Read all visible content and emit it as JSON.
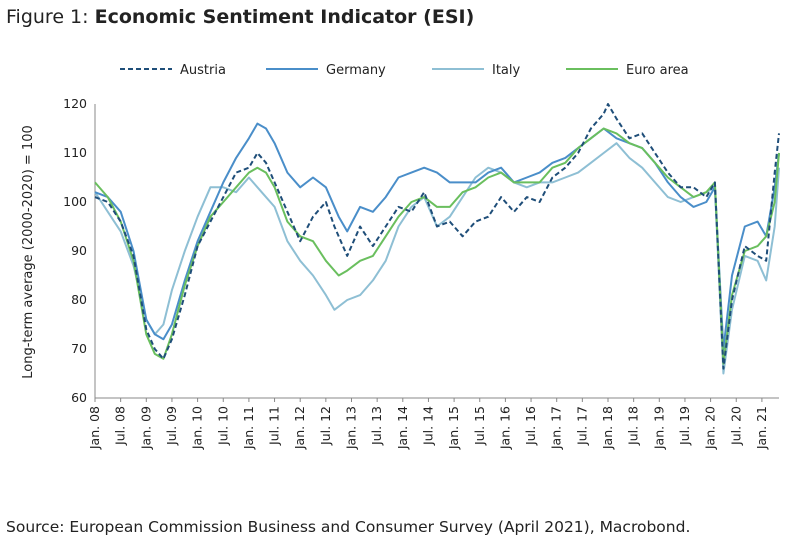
{
  "figure": {
    "prefix": "Figure 1: ",
    "title": "Economic Sentiment Indicator (ESI)",
    "source": "Source: European Commission Business and Consumer Survey (April 2021), Macrobond."
  },
  "chart_data": {
    "type": "line",
    "title": "Economic Sentiment Indicator (ESI)",
    "ylabel": "Long-term average (2000-2020) = 100",
    "xlabel": "",
    "ylim": [
      60,
      120
    ],
    "yticks": [
      60,
      70,
      80,
      90,
      100,
      110,
      120
    ],
    "xrange": [
      "2008-01",
      "2021-05"
    ],
    "xtick_labels": [
      {
        "date": "2008-01",
        "label": "Jan. 08"
      },
      {
        "date": "2008-07",
        "label": "Jul. 08"
      },
      {
        "date": "2009-01",
        "label": "Jan. 09"
      },
      {
        "date": "2009-07",
        "label": "Jul. 09"
      },
      {
        "date": "2010-01",
        "label": "Jan. 10"
      },
      {
        "date": "2010-07",
        "label": "Jul. 10"
      },
      {
        "date": "2011-01",
        "label": "Jan. 11"
      },
      {
        "date": "2011-07",
        "label": "Jul. 11"
      },
      {
        "date": "2012-01",
        "label": "Jan. 12"
      },
      {
        "date": "2012-07",
        "label": "Jul. 12"
      },
      {
        "date": "2013-01",
        "label": "Jan. 13"
      },
      {
        "date": "2013-07",
        "label": "Jul. 13"
      },
      {
        "date": "2014-01",
        "label": "Jan. 14"
      },
      {
        "date": "2014-07",
        "label": "Jul. 14"
      },
      {
        "date": "2015-01",
        "label": "Jan. 15"
      },
      {
        "date": "2015-07",
        "label": "Jul. 15"
      },
      {
        "date": "2016-01",
        "label": "Jan. 16"
      },
      {
        "date": "2016-07",
        "label": "Jul. 16"
      },
      {
        "date": "2017-01",
        "label": "Jan. 17"
      },
      {
        "date": "2017-07",
        "label": "Jul. 17"
      },
      {
        "date": "2018-01",
        "label": "Jan. 18"
      },
      {
        "date": "2018-07",
        "label": "Jul. 18"
      },
      {
        "date": "2019-01",
        "label": "Jan. 19"
      },
      {
        "date": "2019-07",
        "label": "Jul. 19"
      },
      {
        "date": "2020-01",
        "label": "Jan. 20"
      },
      {
        "date": "2020-07",
        "label": "Jul. 20"
      },
      {
        "date": "2021-01",
        "label": "Jan. 21"
      }
    ],
    "grid": false,
    "legend_position": "top",
    "series": [
      {
        "name": "Austria",
        "color": "#1f4e79",
        "style": "dashed",
        "points": [
          [
            "2008-01",
            101
          ],
          [
            "2008-04",
            100
          ],
          [
            "2008-07",
            96
          ],
          [
            "2008-10",
            89
          ],
          [
            "2009-01",
            74
          ],
          [
            "2009-03",
            70
          ],
          [
            "2009-05",
            68
          ],
          [
            "2009-07",
            72
          ],
          [
            "2009-10",
            81
          ],
          [
            "2010-01",
            91
          ],
          [
            "2010-04",
            96
          ],
          [
            "2010-07",
            101
          ],
          [
            "2010-10",
            106
          ],
          [
            "2011-01",
            107
          ],
          [
            "2011-03",
            110
          ],
          [
            "2011-05",
            108
          ],
          [
            "2011-07",
            104
          ],
          [
            "2011-10",
            98
          ],
          [
            "2012-01",
            92
          ],
          [
            "2012-04",
            97
          ],
          [
            "2012-07",
            100
          ],
          [
            "2012-09",
            95
          ],
          [
            "2012-12",
            89
          ],
          [
            "2013-03",
            95
          ],
          [
            "2013-06",
            91
          ],
          [
            "2013-09",
            95
          ],
          [
            "2013-12",
            99
          ],
          [
            "2014-03",
            98
          ],
          [
            "2014-06",
            102
          ],
          [
            "2014-09",
            95
          ],
          [
            "2014-12",
            96
          ],
          [
            "2015-03",
            93
          ],
          [
            "2015-06",
            96
          ],
          [
            "2015-09",
            97
          ],
          [
            "2015-12",
            101
          ],
          [
            "2016-03",
            98
          ],
          [
            "2016-06",
            101
          ],
          [
            "2016-09",
            100
          ],
          [
            "2016-12",
            105
          ],
          [
            "2017-03",
            107
          ],
          [
            "2017-06",
            110
          ],
          [
            "2017-09",
            115
          ],
          [
            "2017-12",
            118
          ],
          [
            "2018-01",
            120
          ],
          [
            "2018-03",
            117
          ],
          [
            "2018-06",
            113
          ],
          [
            "2018-09",
            114
          ],
          [
            "2018-12",
            110
          ],
          [
            "2019-03",
            106
          ],
          [
            "2019-06",
            103
          ],
          [
            "2019-09",
            103
          ],
          [
            "2019-12",
            101
          ],
          [
            "2020-02",
            104
          ],
          [
            "2020-04",
            66
          ],
          [
            "2020-06",
            80
          ],
          [
            "2020-09",
            91
          ],
          [
            "2020-12",
            89
          ],
          [
            "2021-02",
            88
          ],
          [
            "2021-04",
            106
          ],
          [
            "2021-05",
            114
          ]
        ]
      },
      {
        "name": "Germany",
        "color": "#4a8ec9",
        "style": "solid",
        "points": [
          [
            "2008-01",
            102
          ],
          [
            "2008-04",
            101
          ],
          [
            "2008-07",
            98
          ],
          [
            "2008-10",
            90
          ],
          [
            "2009-01",
            76
          ],
          [
            "2009-03",
            73
          ],
          [
            "2009-05",
            72
          ],
          [
            "2009-07",
            75
          ],
          [
            "2009-10",
            84
          ],
          [
            "2010-01",
            92
          ],
          [
            "2010-04",
            98
          ],
          [
            "2010-07",
            104
          ],
          [
            "2010-10",
            109
          ],
          [
            "2011-01",
            113
          ],
          [
            "2011-03",
            116
          ],
          [
            "2011-05",
            115
          ],
          [
            "2011-07",
            112
          ],
          [
            "2011-10",
            106
          ],
          [
            "2012-01",
            103
          ],
          [
            "2012-04",
            105
          ],
          [
            "2012-07",
            103
          ],
          [
            "2012-10",
            97
          ],
          [
            "2012-12",
            94
          ],
          [
            "2013-03",
            99
          ],
          [
            "2013-06",
            98
          ],
          [
            "2013-09",
            101
          ],
          [
            "2013-12",
            105
          ],
          [
            "2014-03",
            106
          ],
          [
            "2014-06",
            107
          ],
          [
            "2014-09",
            106
          ],
          [
            "2014-12",
            104
          ],
          [
            "2015-03",
            104
          ],
          [
            "2015-06",
            104
          ],
          [
            "2015-09",
            106
          ],
          [
            "2015-12",
            107
          ],
          [
            "2016-03",
            104
          ],
          [
            "2016-06",
            105
          ],
          [
            "2016-09",
            106
          ],
          [
            "2016-12",
            108
          ],
          [
            "2017-03",
            109
          ],
          [
            "2017-06",
            111
          ],
          [
            "2017-09",
            113
          ],
          [
            "2017-12",
            115
          ],
          [
            "2018-03",
            113
          ],
          [
            "2018-06",
            112
          ],
          [
            "2018-09",
            111
          ],
          [
            "2018-12",
            108
          ],
          [
            "2019-03",
            104
          ],
          [
            "2019-06",
            101
          ],
          [
            "2019-09",
            99
          ],
          [
            "2019-12",
            100
          ],
          [
            "2020-02",
            103
          ],
          [
            "2020-04",
            70
          ],
          [
            "2020-06",
            85
          ],
          [
            "2020-09",
            95
          ],
          [
            "2020-12",
            96
          ],
          [
            "2021-02",
            93
          ],
          [
            "2021-04",
            103
          ],
          [
            "2021-05",
            110
          ]
        ]
      },
      {
        "name": "Italy",
        "color": "#8ebfd4",
        "style": "solid",
        "points": [
          [
            "2008-01",
            102
          ],
          [
            "2008-04",
            98
          ],
          [
            "2008-07",
            94
          ],
          [
            "2008-10",
            87
          ],
          [
            "2009-01",
            76
          ],
          [
            "2009-03",
            73
          ],
          [
            "2009-05",
            75
          ],
          [
            "2009-07",
            82
          ],
          [
            "2009-10",
            90
          ],
          [
            "2010-01",
            97
          ],
          [
            "2010-04",
            103
          ],
          [
            "2010-07",
            103
          ],
          [
            "2010-10",
            102
          ],
          [
            "2011-01",
            105
          ],
          [
            "2011-04",
            102
          ],
          [
            "2011-07",
            99
          ],
          [
            "2011-10",
            92
          ],
          [
            "2012-01",
            88
          ],
          [
            "2012-04",
            85
          ],
          [
            "2012-07",
            81
          ],
          [
            "2012-09",
            78
          ],
          [
            "2012-12",
            80
          ],
          [
            "2013-03",
            81
          ],
          [
            "2013-06",
            84
          ],
          [
            "2013-09",
            88
          ],
          [
            "2013-12",
            95
          ],
          [
            "2014-03",
            99
          ],
          [
            "2014-06",
            101
          ],
          [
            "2014-09",
            95
          ],
          [
            "2014-12",
            97
          ],
          [
            "2015-03",
            101
          ],
          [
            "2015-06",
            105
          ],
          [
            "2015-09",
            107
          ],
          [
            "2015-12",
            106
          ],
          [
            "2016-03",
            104
          ],
          [
            "2016-06",
            103
          ],
          [
            "2016-09",
            104
          ],
          [
            "2016-12",
            104
          ],
          [
            "2017-03",
            105
          ],
          [
            "2017-06",
            106
          ],
          [
            "2017-09",
            108
          ],
          [
            "2017-12",
            110
          ],
          [
            "2018-03",
            112
          ],
          [
            "2018-06",
            109
          ],
          [
            "2018-09",
            107
          ],
          [
            "2018-12",
            104
          ],
          [
            "2019-03",
            101
          ],
          [
            "2019-06",
            100
          ],
          [
            "2019-09",
            101
          ],
          [
            "2019-12",
            102
          ],
          [
            "2020-02",
            103
          ],
          [
            "2020-04",
            65
          ],
          [
            "2020-06",
            78
          ],
          [
            "2020-09",
            89
          ],
          [
            "2020-12",
            88
          ],
          [
            "2021-02",
            84
          ],
          [
            "2021-04",
            95
          ],
          [
            "2021-05",
            107
          ]
        ]
      },
      {
        "name": "Euro area",
        "color": "#6abf5e",
        "style": "solid",
        "points": [
          [
            "2008-01",
            104
          ],
          [
            "2008-04",
            101
          ],
          [
            "2008-07",
            96
          ],
          [
            "2008-10",
            88
          ],
          [
            "2009-01",
            73
          ],
          [
            "2009-03",
            69
          ],
          [
            "2009-05",
            68
          ],
          [
            "2009-07",
            73
          ],
          [
            "2009-10",
            83
          ],
          [
            "2010-01",
            91
          ],
          [
            "2010-04",
            97
          ],
          [
            "2010-07",
            100
          ],
          [
            "2010-10",
            103
          ],
          [
            "2011-01",
            106
          ],
          [
            "2011-03",
            107
          ],
          [
            "2011-05",
            106
          ],
          [
            "2011-07",
            103
          ],
          [
            "2011-10",
            96
          ],
          [
            "2012-01",
            93
          ],
          [
            "2012-04",
            92
          ],
          [
            "2012-07",
            88
          ],
          [
            "2012-10",
            85
          ],
          [
            "2012-12",
            86
          ],
          [
            "2013-03",
            88
          ],
          [
            "2013-06",
            89
          ],
          [
            "2013-09",
            93
          ],
          [
            "2013-12",
            97
          ],
          [
            "2014-03",
            100
          ],
          [
            "2014-06",
            101
          ],
          [
            "2014-09",
            99
          ],
          [
            "2014-12",
            99
          ],
          [
            "2015-03",
            102
          ],
          [
            "2015-06",
            103
          ],
          [
            "2015-09",
            105
          ],
          [
            "2015-12",
            106
          ],
          [
            "2016-03",
            104
          ],
          [
            "2016-06",
            104
          ],
          [
            "2016-09",
            104
          ],
          [
            "2016-12",
            107
          ],
          [
            "2017-03",
            108
          ],
          [
            "2017-06",
            111
          ],
          [
            "2017-09",
            113
          ],
          [
            "2017-12",
            115
          ],
          [
            "2018-03",
            114
          ],
          [
            "2018-06",
            112
          ],
          [
            "2018-09",
            111
          ],
          [
            "2018-12",
            108
          ],
          [
            "2019-03",
            105
          ],
          [
            "2019-06",
            103
          ],
          [
            "2019-09",
            101
          ],
          [
            "2019-12",
            102
          ],
          [
            "2020-02",
            104
          ],
          [
            "2020-04",
            67
          ],
          [
            "2020-06",
            81
          ],
          [
            "2020-09",
            90
          ],
          [
            "2020-12",
            91
          ],
          [
            "2021-02",
            93
          ],
          [
            "2021-04",
            100
          ],
          [
            "2021-05",
            110
          ]
        ]
      }
    ]
  }
}
